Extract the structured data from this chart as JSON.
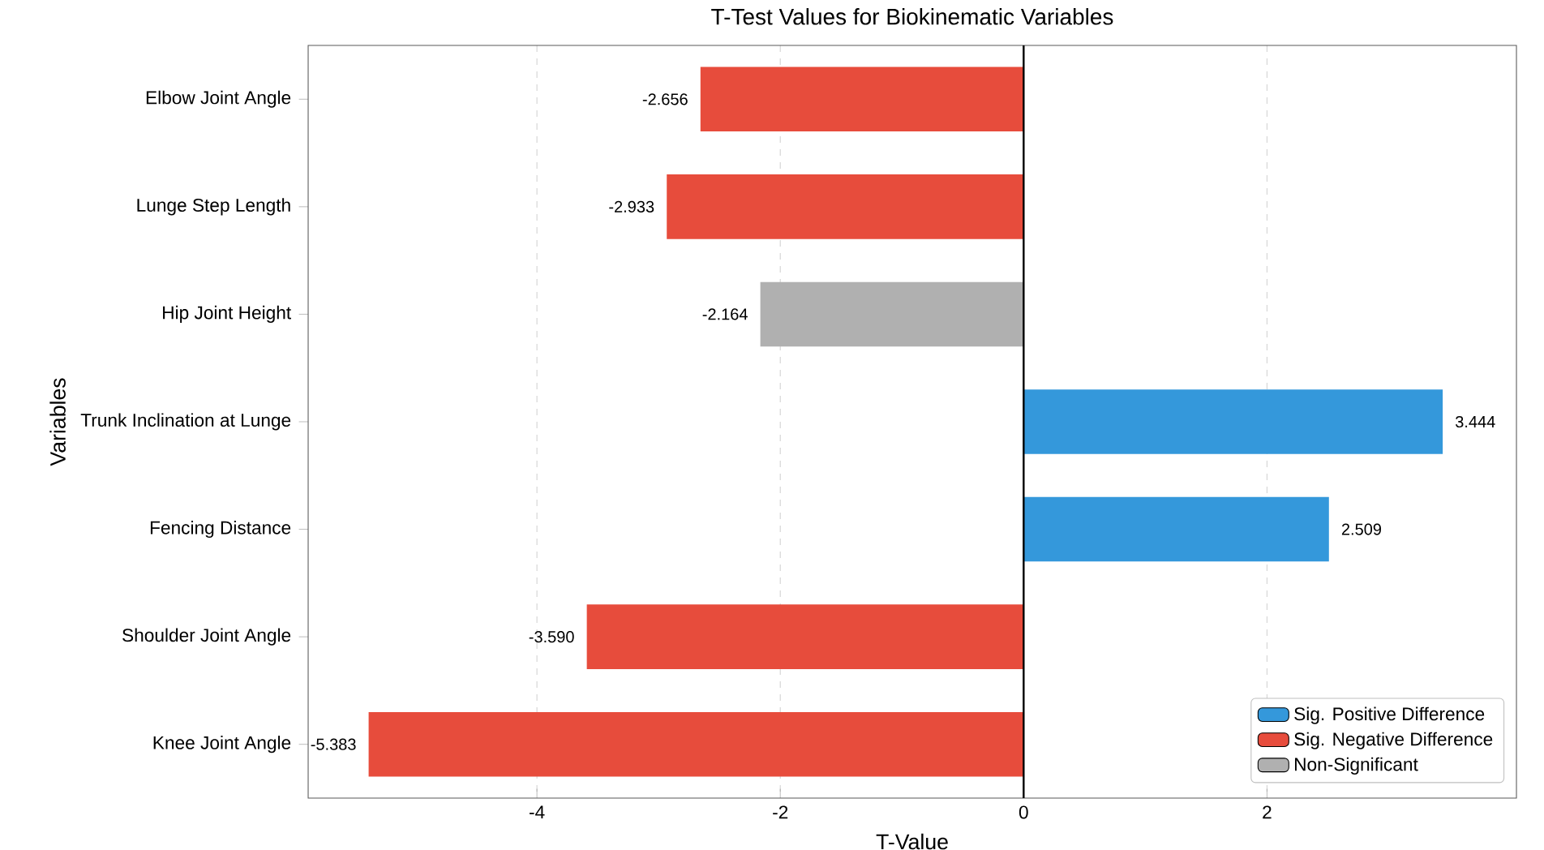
{
  "chart_data": {
    "type": "bar",
    "orientation": "horizontal",
    "title": "T-Test Values for Biokinematic Variables",
    "xlabel": "T-Value",
    "ylabel": "Variables",
    "categories": [
      "Elbow Joint Angle",
      "Lunge Step Length",
      "Hip Joint Height",
      "Trunk Inclination at Lunge",
      "Fencing Distance",
      "Shoulder Joint Angle",
      "Knee Joint Angle"
    ],
    "series": [
      {
        "name": "Sig. Positive Difference",
        "color": "#3498db",
        "values": [
          null,
          null,
          null,
          3.444,
          2.509,
          null,
          null
        ],
        "value_labels": [
          null,
          null,
          null,
          "3.444",
          "2.509",
          null,
          null
        ]
      },
      {
        "name": "Sig. Negative Difference",
        "color": "#e74c3c",
        "values": [
          -2.656,
          -2.933,
          null,
          null,
          null,
          -3.59,
          -5.383
        ],
        "value_labels": [
          "-2.656",
          "-2.933",
          null,
          null,
          null,
          "-3.590",
          "-5.383"
        ]
      },
      {
        "name": "Non-Significant",
        "color": "#b0b0b0",
        "values": [
          null,
          null,
          -2.164,
          null,
          null,
          null,
          null
        ],
        "value_labels": [
          null,
          null,
          "-2.164",
          null,
          null,
          null,
          null
        ]
      }
    ],
    "xlim": [
      -5.88,
      4.05
    ],
    "xticks": [
      -4,
      -2,
      0,
      2
    ],
    "grid": "x",
    "legend": "bottom right",
    "ref_lines": [
      {
        "axis": "x",
        "value": 0,
        "color": "#000000"
      }
    ]
  }
}
